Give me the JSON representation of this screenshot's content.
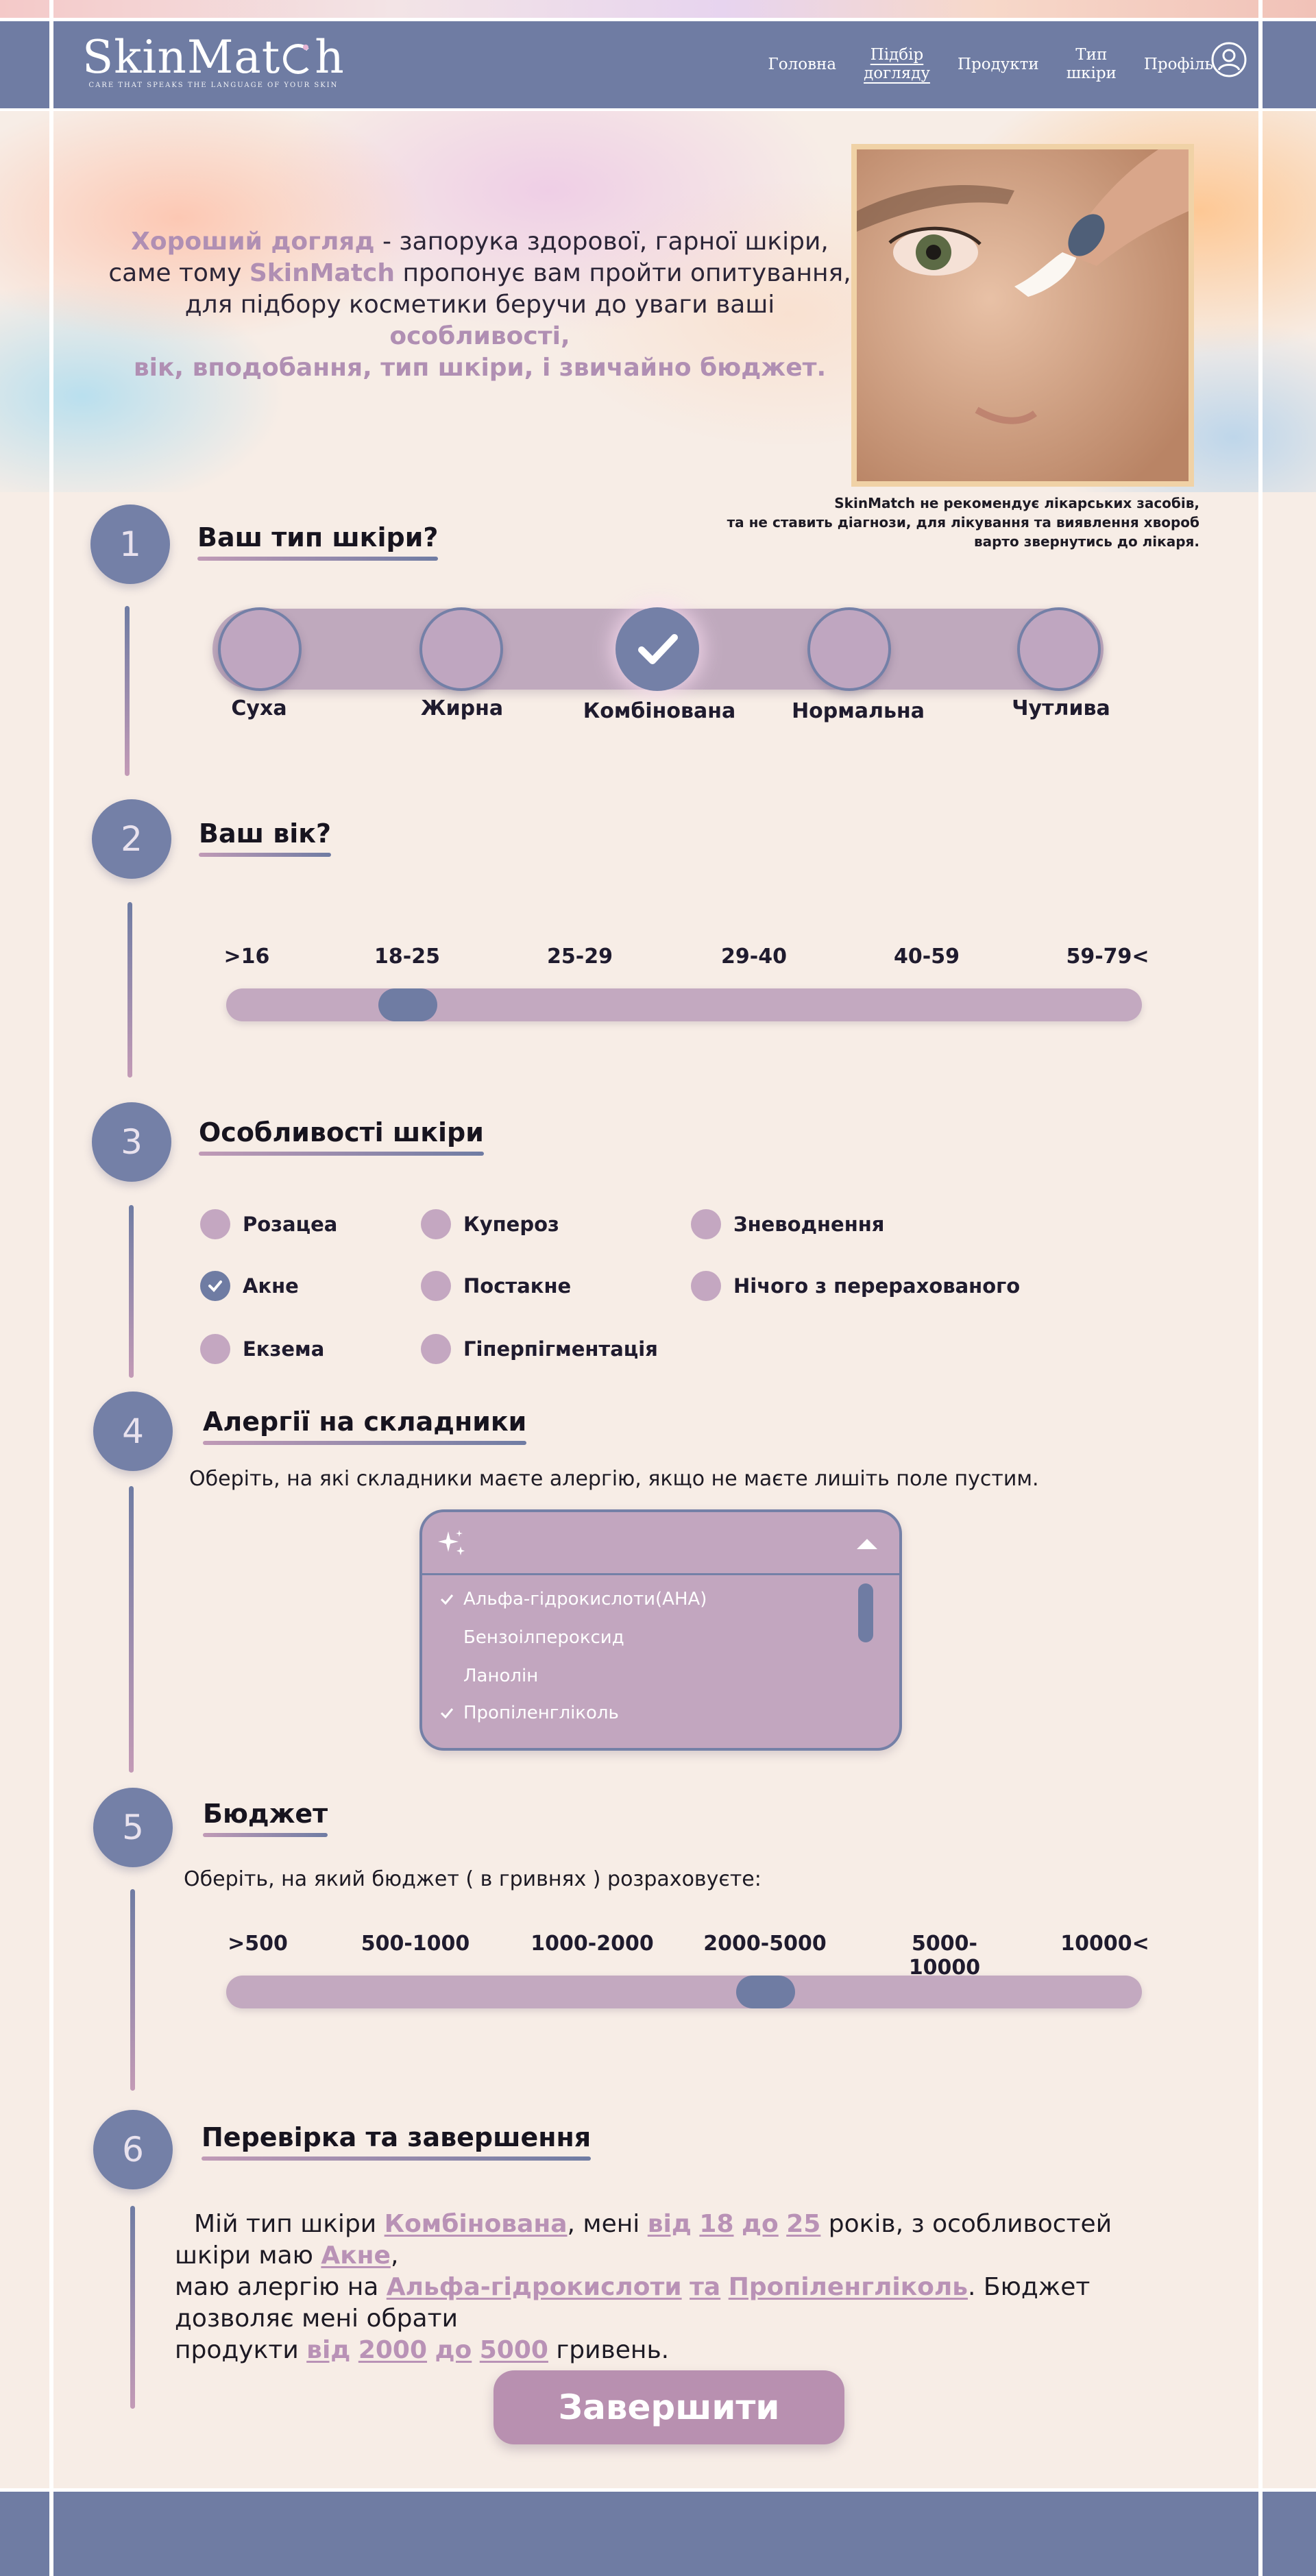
{
  "brand": {
    "logo_part1": "SkinMat",
    "logo_part2": "h",
    "tagline": "CARE THAT SPEAKS THE LANGUAGE OF YOUR SKIN"
  },
  "nav": {
    "items": [
      {
        "label": "Головна",
        "active": false
      },
      {
        "label": "Підбір\nдогляду",
        "active": true
      },
      {
        "label": "Продукти",
        "active": false
      },
      {
        "label": "Тип\nшкіри",
        "active": false
      },
      {
        "label": "Профіль",
        "active": false
      }
    ]
  },
  "hero": {
    "hl1": "Хороший догляд",
    "t1": " - запорука здорової, гарної шкіри,",
    "t2": "саме тому ",
    "hl2": "SkinMatch",
    "t3": " пропонує вам пройти опитування,",
    "t4": "для підбору косметики беручи до уваги ваші ",
    "hl3": "особливості,",
    "hl4": "вік, вподобання, тип шкіри, і звичайно бюджет."
  },
  "disclaimer": {
    "line1": "SkinMatch не рекомендує лікарських засобів,",
    "line2": "та не ставить діагнози, для лікування та виявлення хвороб",
    "line3": "варто звернутись до лікаря."
  },
  "steps": {
    "s1": {
      "num": "1",
      "title": "Ваш тип шкіри?"
    },
    "s2": {
      "num": "2",
      "title": "Ваш вік?"
    },
    "s3": {
      "num": "3",
      "title": "Особливості шкіри"
    },
    "s4": {
      "num": "4",
      "title": "Алергії на складники",
      "subtitle": "Оберіть, на які складники маєте алергію, якщо не маєте лишіть поле пустим."
    },
    "s5": {
      "num": "5",
      "title": "Бюджет",
      "subtitle": "Оберіть, на який бюджет ( в гривнях ) розраховуєте:"
    },
    "s6": {
      "num": "6",
      "title": "Перевірка та завершення"
    }
  },
  "skin_types": {
    "options": [
      "Суха",
      "Жирна",
      "Комбінована",
      "Нормальна",
      "Чутлива"
    ],
    "selected": "Комбінована"
  },
  "age": {
    "labels": [
      ">16",
      "18-25",
      "25-29",
      "29-40",
      "40-59",
      "59-79<"
    ],
    "selected": "18-25"
  },
  "features": {
    "items": [
      "Розацеа",
      "Купероз",
      "Зневоднення",
      "Акне",
      "Постакне",
      "Нічого з перерахованого",
      "Екзема",
      "Гіперпігментація"
    ],
    "checked": [
      "Акне"
    ]
  },
  "allergies": {
    "items": [
      "Альфа-гідрокислоти(AHA)",
      "Бензоілпероксид",
      "Ланолін",
      "Пропіленгліколь"
    ],
    "checked": [
      "Альфа-гідрокислоти(AHA)",
      "Пропіленгліколь"
    ]
  },
  "budget": {
    "labels": [
      ">500",
      "500-1000",
      "1000-2000",
      "2000-5000",
      "5000-10000",
      "10000<"
    ],
    "selected": "2000-5000"
  },
  "summary": {
    "p1": "Мій тип шкіри ",
    "skin": "Комбінована",
    "p2": ", мені ",
    "from1": "від",
    "age_from": "18",
    "to1": "до",
    "age_to": "25",
    "p3": " років, з особливостей шкіри маю ",
    "feature": "Акне",
    "p4": ",",
    "p5": "маю алергію на ",
    "allergy1": "Альфа-гідрокислоти",
    "and": "та",
    "allergy2": "Пропіленгліколь",
    "p6": ". Бюджет дозволяє мені обрати",
    "p7": "продукти ",
    "from2": "від",
    "budget_from": "2000",
    "to2": "до",
    "budget_to": "5000",
    "p8": " гривень."
  },
  "finish_label": "Завершити",
  "colors": {
    "primary": "#6f7ca3",
    "accent": "#b890b0",
    "track": "#c3a9c0",
    "background": "#f7ede6"
  }
}
